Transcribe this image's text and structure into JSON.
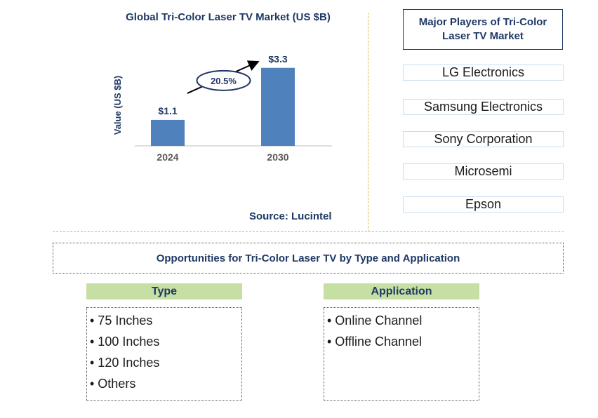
{
  "chart_data": {
    "type": "bar",
    "title": "Global Tri-Color Laser TV Market (US $B)",
    "ylabel": "Value (US $B)",
    "xlabel": "",
    "categories": [
      "2024",
      "2030"
    ],
    "values": [
      1.1,
      3.3
    ],
    "value_labels": [
      "$1.1",
      "$3.3"
    ],
    "ylim": [
      0,
      3.5
    ],
    "growth_label": "20.5%",
    "bar_color": "#4f81bd",
    "grid": false
  },
  "source": "Source: Lucintel",
  "players": {
    "title": "Major Players of Tri-Color Laser TV Market",
    "items": [
      "LG Electronics",
      "Samsung Electronics",
      "Sony Corporation",
      "Microsemi",
      "Epson"
    ]
  },
  "opportunities": {
    "title": "Opportunities for Tri-Color Laser TV by Type and Application",
    "type": {
      "heading": "Type",
      "items": [
        "• 75 Inches",
        "• 100 Inches",
        "• 120 Inches",
        "• Others"
      ]
    },
    "application": {
      "heading": "Application",
      "items": [
        "• Online Channel",
        "• Offline Channel"
      ]
    }
  },
  "colors": {
    "title": "#1f3864",
    "bar": "#4f81bd",
    "heading_fill": "#c6e0a4",
    "divider": "#e0b94a"
  }
}
